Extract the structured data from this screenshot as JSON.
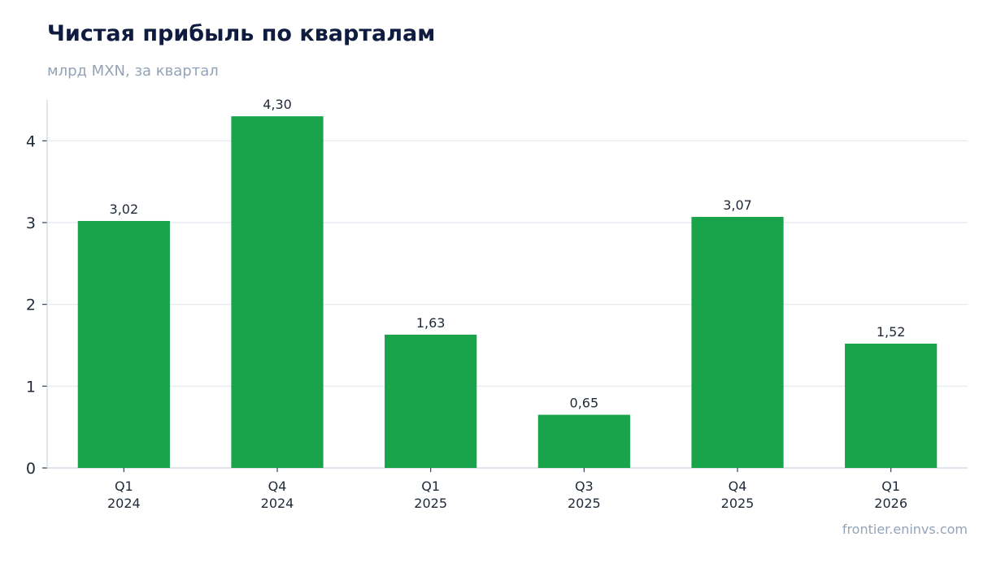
{
  "header": {
    "title": "Чистая прибыль по кварталам",
    "subtitle": "млрд MXN, за квартал"
  },
  "footer": {
    "source": "frontier.eninvs.com"
  },
  "chart_data": {
    "type": "bar",
    "title": "Чистая прибыль по кварталам",
    "subtitle": "млрд MXN, за квартал",
    "categories": [
      [
        "Q1",
        "2024"
      ],
      [
        "Q4",
        "2024"
      ],
      [
        "Q1",
        "2025"
      ],
      [
        "Q3",
        "2025"
      ],
      [
        "Q4",
        "2025"
      ],
      [
        "Q1",
        "2026"
      ]
    ],
    "values": [
      3.02,
      4.3,
      1.63,
      0.65,
      3.07,
      1.52
    ],
    "value_labels": [
      "3,02",
      "4,30",
      "1,63",
      "0,65",
      "3,07",
      "1,52"
    ],
    "xlabel": "",
    "ylabel": "",
    "ylim": [
      0,
      4.5
    ],
    "yticks": [
      0,
      1,
      2,
      3,
      4
    ],
    "grid": true,
    "bar_color": "#19a34a",
    "grid_color": "#e2e8f0",
    "axis_color": "#cbd5e1"
  }
}
